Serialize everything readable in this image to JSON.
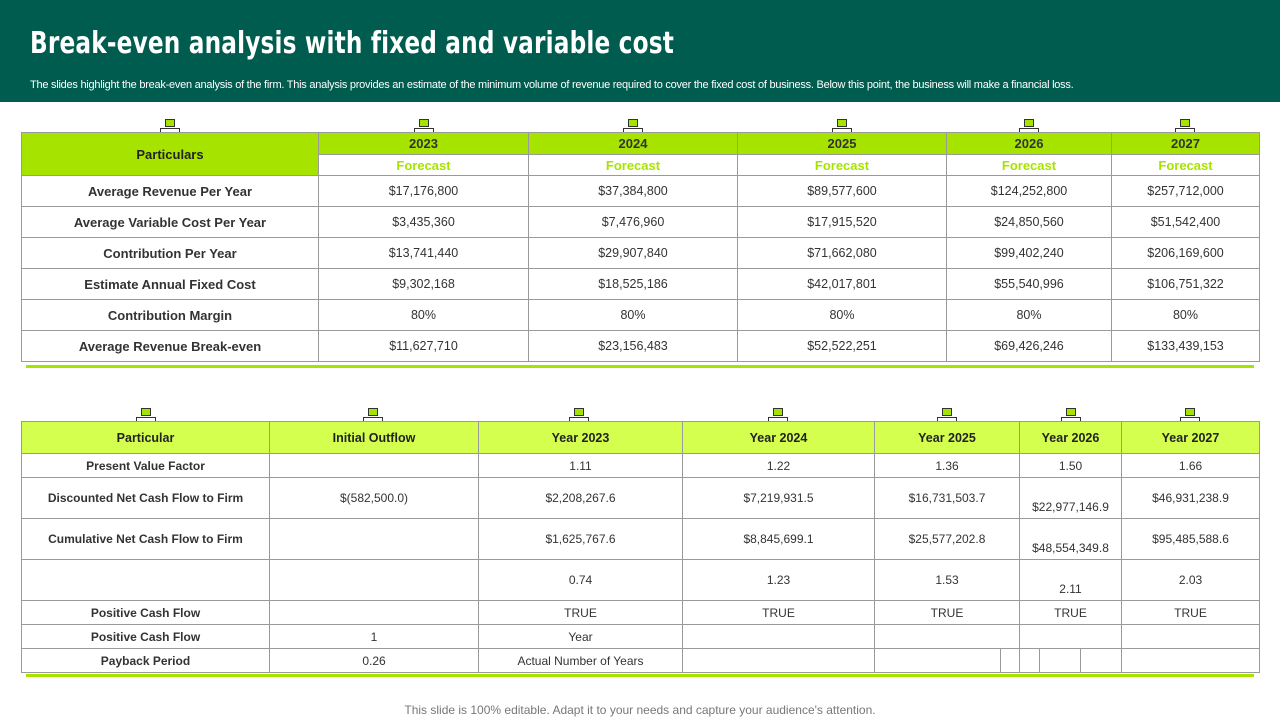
{
  "header": {
    "title": "Break-even analysis with fixed and variable cost",
    "subtitle": "The slides highlight the break-even analysis of the firm. This analysis provides an estimate of the minimum volume of revenue required to cover the fixed cost of business. Below this point, the business will make a financial loss."
  },
  "colors": {
    "header_bg": "#005c4e",
    "accent_green": "#a6e400",
    "light_green": "#d4ff4f"
  },
  "table1": {
    "corner_label": "Particulars",
    "years": [
      "2023",
      "2024",
      "2025",
      "2026",
      "2027"
    ],
    "sublabel": "Forecast",
    "rows": [
      {
        "label": "Average Revenue Per Year",
        "values": [
          "$17,176,800",
          "$37,384,800",
          "$89,577,600",
          "$124,252,800",
          "$257,712,000"
        ]
      },
      {
        "label": "Average Variable Cost Per Year",
        "values": [
          "$3,435,360",
          "$7,476,960",
          "$17,915,520",
          "$24,850,560",
          "$51,542,400"
        ]
      },
      {
        "label": "Contribution  Per Year",
        "values": [
          "$13,741,440",
          "$29,907,840",
          "$71,662,080",
          "$99,402,240",
          "$206,169,600"
        ]
      },
      {
        "label": "Estimate  Annual Fixed Cost",
        "values": [
          "$9,302,168",
          "$18,525,186",
          "$42,017,801",
          "$55,540,996",
          "$106,751,322"
        ]
      },
      {
        "label": "Contribution  Margin",
        "values": [
          "80%",
          "80%",
          "80%",
          "80%",
          "80%"
        ]
      },
      {
        "label": "Average Revenue Break-even",
        "values": [
          "$11,627,710",
          "$23,156,483",
          "$52,522,251",
          "$69,426,246",
          "$133,439,153"
        ]
      }
    ]
  },
  "table2": {
    "headers": [
      "Particular",
      "Initial Outflow",
      "Year 2023",
      "Year 2024",
      "Year 2025",
      "Year 2026",
      "Year 2027"
    ],
    "rows": [
      {
        "label": "Present Value Factor",
        "values": [
          "",
          "1.11",
          "1.22",
          "1.36",
          "1.50",
          "1.66"
        ]
      },
      {
        "label": "Discounted  Net Cash Flow to Firm",
        "values": [
          "$(582,500.0)",
          "$2,208,267.6",
          "$7,219,931.5",
          "$16,731,503.7",
          "$22,977,146.9",
          "$46,931,238.9"
        ]
      },
      {
        "label": "Cumulative  Net Cash Flow to Firm",
        "values": [
          "",
          "$1,625,767.6",
          "$8,845,699.1",
          "$25,577,202.8",
          "$48,554,349.8",
          "$95,485,588.6"
        ]
      },
      {
        "label": "",
        "values": [
          "",
          "0.74",
          "1.23",
          "1.53",
          "2.11",
          "2.03"
        ]
      },
      {
        "label": "Positive Cash Flow",
        "values": [
          "",
          "TRUE",
          "TRUE",
          "TRUE",
          "TRUE",
          "TRUE"
        ]
      },
      {
        "label": "Positive Cash Flow",
        "values": [
          "1",
          "Year",
          "",
          "",
          "",
          ""
        ]
      },
      {
        "label": "Payback Period",
        "values": [
          "0.26",
          "Actual Number of Years",
          "",
          "",
          "",
          ""
        ]
      }
    ]
  },
  "footer": {
    "note": "This slide is 100% editable. Adapt it to your needs and capture your audience's attention."
  }
}
